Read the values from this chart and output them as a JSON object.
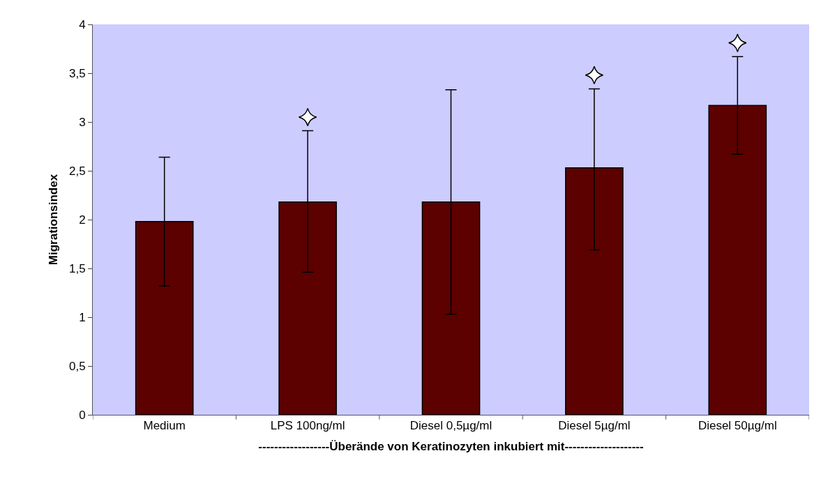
{
  "chart_data": {
    "type": "bar",
    "xlabel": "------------------Überände von Keratinozyten inkubiert mit--------------------",
    "ylabel": "Migrationsindex",
    "categories": [
      "Medium",
      "LPS 100ng/ml",
      "Diesel 0,5µg/ml",
      "Diesel 5µg/ml",
      "Diesel 50µg/ml"
    ],
    "series": [
      {
        "color": "#5c0000",
        "values": [
          1.98,
          2.18,
          2.18,
          2.53,
          3.17
        ],
        "errors": [
          [
            1.32,
            2.64
          ],
          [
            1.46,
            2.91
          ],
          [
            1.03,
            3.33
          ],
          [
            1.69,
            3.34
          ],
          [
            2.67,
            3.67
          ]
        ]
      },
      {
        "type": "scatter",
        "marker": "star",
        "color": "#ffffff",
        "x": [
          "LPS 100ng/ml",
          "Diesel 5µg/ml",
          "Diesel 50µg/ml"
        ],
        "values": [
          3.05,
          3.48,
          3.81
        ]
      }
    ],
    "ylim": [
      0,
      4
    ],
    "yticks": [
      {
        "value": 0,
        "label": "0"
      },
      {
        "value": 0.5,
        "label": "0,5"
      },
      {
        "value": 1,
        "label": "1"
      },
      {
        "value": 1.5,
        "label": "1,5"
      },
      {
        "value": 2,
        "label": "2"
      },
      {
        "value": 2.5,
        "label": "2,5"
      },
      {
        "value": 3,
        "label": "3"
      },
      {
        "value": 3.5,
        "label": "3,5"
      },
      {
        "value": 4,
        "label": "4"
      }
    ],
    "grid": false
  }
}
